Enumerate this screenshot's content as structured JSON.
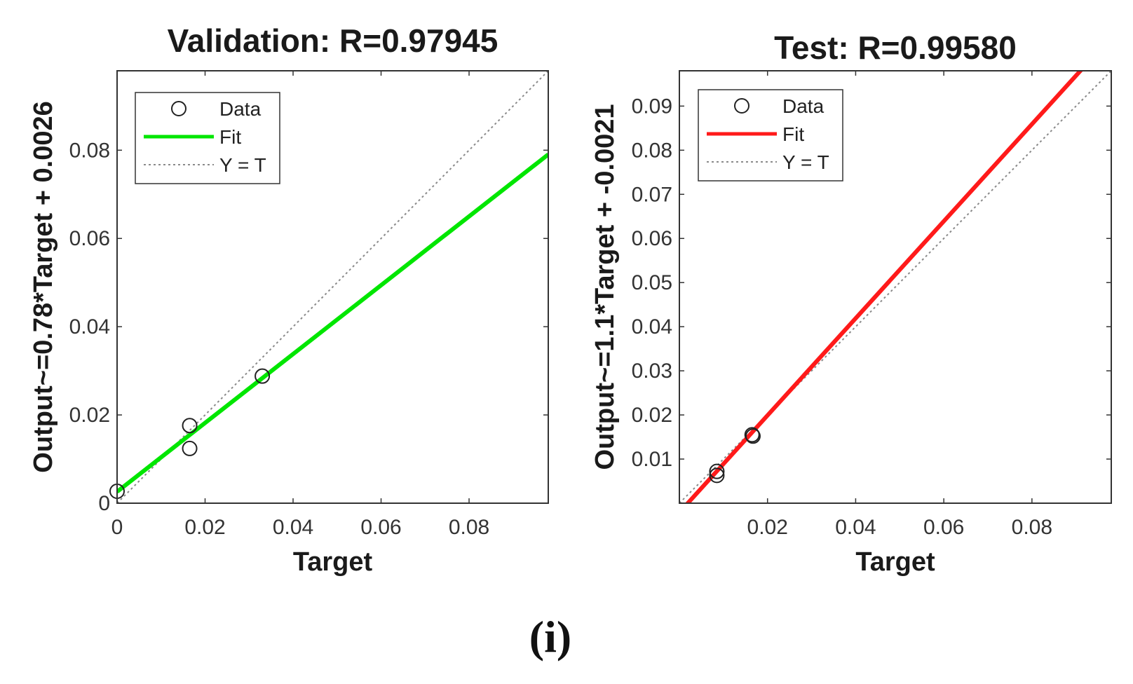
{
  "figure": {
    "caption": "(i)"
  },
  "chart_data": [
    {
      "type": "scatter",
      "title": "Validation: R=0.97945",
      "xlabel": "Target",
      "ylabel": "Output~=0.78*Target + 0.0026",
      "xlim": [
        0,
        0.098
      ],
      "ylim": [
        0,
        0.098
      ],
      "xticks": [
        0,
        0.02,
        0.04,
        0.06,
        0.08
      ],
      "xtick_labels": [
        "0",
        "0.02",
        "0.04",
        "0.06",
        "0.08"
      ],
      "yticks": [
        0,
        0.02,
        0.04,
        0.06,
        0.08
      ],
      "ytick_labels": [
        "0",
        "0.02",
        "0.04",
        "0.06",
        "0.08"
      ],
      "grid": false,
      "legend_position": "top-left",
      "legend": [
        "Data",
        "Fit",
        "Y = T"
      ],
      "data": {
        "x": [
          0.0,
          0.0165,
          0.0165,
          0.033
        ],
        "y": [
          0.0027,
          0.0176,
          0.0124,
          0.0288
        ]
      },
      "fit": {
        "slope": 0.78,
        "intercept": 0.0026,
        "color": "#00e600"
      },
      "identity_color": "#8a8a8a"
    },
    {
      "type": "scatter",
      "title": "Test: R=0.99580",
      "xlabel": "Target",
      "ylabel": "Output~=1.1*Target + -0.0021",
      "xlim": [
        0,
        0.098
      ],
      "ylim": [
        0,
        0.098
      ],
      "xticks": [
        0.02,
        0.04,
        0.06,
        0.08
      ],
      "xtick_labels": [
        "0.02",
        "0.04",
        "0.06",
        "0.08"
      ],
      "yticks": [
        0.01,
        0.02,
        0.03,
        0.04,
        0.05,
        0.06,
        0.07,
        0.08,
        0.09
      ],
      "ytick_labels": [
        "0.01",
        "0.02",
        "0.03",
        "0.04",
        "0.05",
        "0.06",
        "0.07",
        "0.08",
        "0.09"
      ],
      "grid": false,
      "legend_position": "top-left",
      "legend": [
        "Data",
        "Fit",
        "Y = T"
      ],
      "data": {
        "x": [
          0.0085,
          0.0085,
          0.0165,
          0.0167
        ],
        "y": [
          0.0072,
          0.0063,
          0.0155,
          0.0152
        ]
      },
      "fit": {
        "slope": 1.1,
        "intercept": -0.0021,
        "color": "#ff1a1a"
      },
      "identity_color": "#8a8a8a"
    }
  ]
}
